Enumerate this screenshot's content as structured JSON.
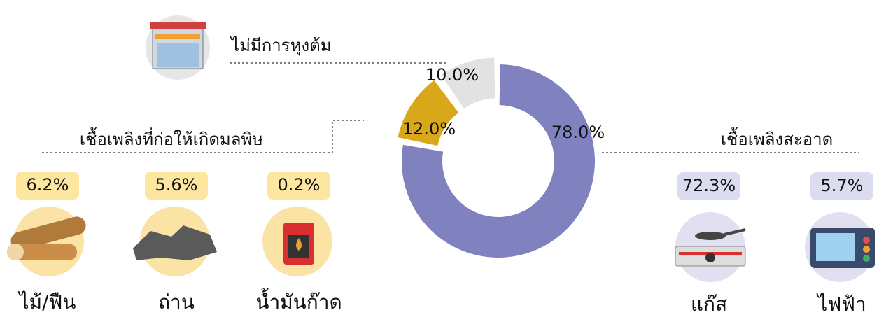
{
  "chart_data": {
    "type": "donut",
    "categories": [
      "เชื้อเพลิงสะอาด",
      "เชื้อเพลิงที่ก่อให้เกิดมลพิษ",
      "ไม่มีการหุงต้ม"
    ],
    "values": [
      78.0,
      12.0,
      10.0
    ],
    "value_labels": [
      "78.0%",
      "12.0%",
      "10.0%"
    ],
    "colors": [
      "#8082c0",
      "#d9a81a",
      "#e2e2e2"
    ]
  },
  "polluting_items": [
    {
      "label": "ไม้/ฟืน",
      "share": "6.2%"
    },
    {
      "label": "ถ่าน",
      "share": "5.6%"
    },
    {
      "label": "น้ำมันก๊าด",
      "share": "0.2%"
    }
  ],
  "clean_items": [
    {
      "label": "แก๊ส",
      "share": "72.3%"
    },
    {
      "label": "ไฟฟ้า",
      "share": "5.7%"
    }
  ]
}
